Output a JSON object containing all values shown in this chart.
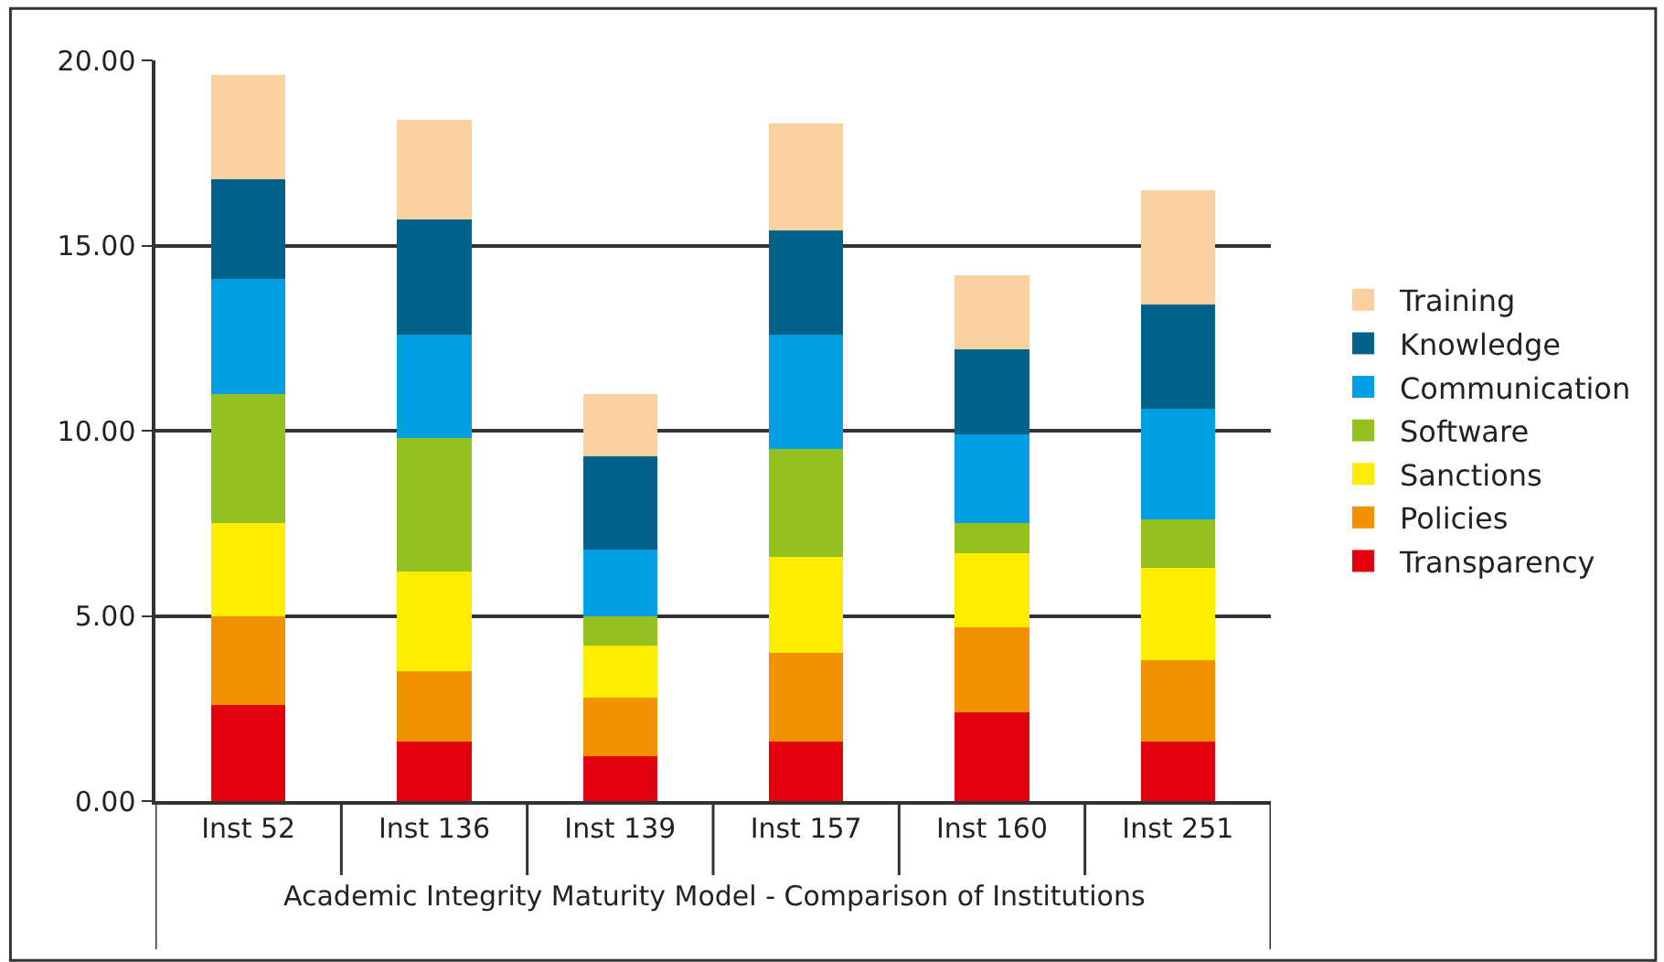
{
  "chart_data": {
    "type": "bar",
    "stacked": true,
    "xlabel": "Academic Integrity Maturity Model - Comparison of Institutions",
    "categories": [
      "Inst 52",
      "Inst 136",
      "Inst 139",
      "Inst 157",
      "Inst 160",
      "Inst 251"
    ],
    "series": [
      {
        "name": "Transparency",
        "color": "#e2000f",
        "values": [
          2.6,
          1.6,
          1.2,
          1.6,
          2.4,
          1.6
        ]
      },
      {
        "name": "Policies",
        "color": "#f39200",
        "values": [
          2.4,
          1.9,
          1.6,
          2.4,
          2.3,
          2.2
        ]
      },
      {
        "name": "Sanctions",
        "color": "#ffed00",
        "values": [
          2.5,
          2.7,
          1.4,
          2.6,
          2.0,
          2.5
        ]
      },
      {
        "name": "Software",
        "color": "#95c11f",
        "values": [
          3.5,
          3.6,
          0.8,
          2.9,
          0.8,
          1.3
        ]
      },
      {
        "name": "Communication",
        "color": "#009fe3",
        "values": [
          3.1,
          2.8,
          1.8,
          3.1,
          2.4,
          3.0
        ]
      },
      {
        "name": "Knowledge",
        "color": "#006189",
        "values": [
          2.7,
          3.1,
          2.5,
          2.8,
          2.3,
          2.8
        ]
      },
      {
        "name": "Training",
        "color": "#fbd09f",
        "values": [
          2.8,
          2.7,
          1.7,
          2.9,
          2.0,
          3.1
        ]
      }
    ],
    "ylim": [
      0,
      20
    ],
    "yticks": [
      {
        "value": 0,
        "label": "0.00"
      },
      {
        "value": 5,
        "label": "5.00"
      },
      {
        "value": 10,
        "label": "10.00"
      },
      {
        "value": 15,
        "label": "15.00"
      },
      {
        "value": 20,
        "label": "20.00"
      }
    ],
    "grid": "y",
    "legend": "right"
  }
}
